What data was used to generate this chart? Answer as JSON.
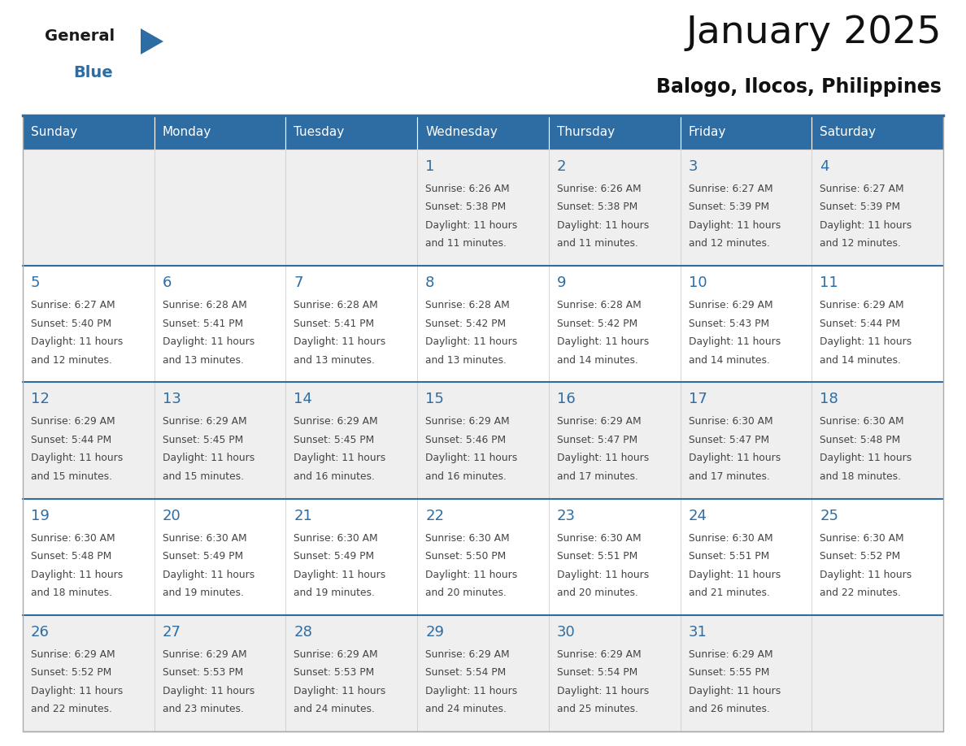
{
  "title": "January 2025",
  "subtitle": "Balogo, Ilocos, Philippines",
  "days_of_week": [
    "Sunday",
    "Monday",
    "Tuesday",
    "Wednesday",
    "Thursday",
    "Friday",
    "Saturday"
  ],
  "header_bg": "#2E6DA4",
  "header_text": "#FFFFFF",
  "cell_bg_row0": "#EFEFEF",
  "cell_bg_row1": "#FFFFFF",
  "cell_bg_row2": "#EFEFEF",
  "cell_bg_row3": "#FFFFFF",
  "cell_bg_row4": "#EFEFEF",
  "cell_border": "#CCCCCC",
  "row_border": "#2E6DA4",
  "day_number_color": "#2E6DA4",
  "text_color": "#444444",
  "calendar": [
    [
      null,
      null,
      null,
      {
        "day": 1,
        "sunrise": "6:26 AM",
        "sunset": "5:38 PM",
        "daylight_line1": "Daylight: 11 hours",
        "daylight_line2": "and 11 minutes."
      },
      {
        "day": 2,
        "sunrise": "6:26 AM",
        "sunset": "5:38 PM",
        "daylight_line1": "Daylight: 11 hours",
        "daylight_line2": "and 11 minutes."
      },
      {
        "day": 3,
        "sunrise": "6:27 AM",
        "sunset": "5:39 PM",
        "daylight_line1": "Daylight: 11 hours",
        "daylight_line2": "and 12 minutes."
      },
      {
        "day": 4,
        "sunrise": "6:27 AM",
        "sunset": "5:39 PM",
        "daylight_line1": "Daylight: 11 hours",
        "daylight_line2": "and 12 minutes."
      }
    ],
    [
      {
        "day": 5,
        "sunrise": "6:27 AM",
        "sunset": "5:40 PM",
        "daylight_line1": "Daylight: 11 hours",
        "daylight_line2": "and 12 minutes."
      },
      {
        "day": 6,
        "sunrise": "6:28 AM",
        "sunset": "5:41 PM",
        "daylight_line1": "Daylight: 11 hours",
        "daylight_line2": "and 13 minutes."
      },
      {
        "day": 7,
        "sunrise": "6:28 AM",
        "sunset": "5:41 PM",
        "daylight_line1": "Daylight: 11 hours",
        "daylight_line2": "and 13 minutes."
      },
      {
        "day": 8,
        "sunrise": "6:28 AM",
        "sunset": "5:42 PM",
        "daylight_line1": "Daylight: 11 hours",
        "daylight_line2": "and 13 minutes."
      },
      {
        "day": 9,
        "sunrise": "6:28 AM",
        "sunset": "5:42 PM",
        "daylight_line1": "Daylight: 11 hours",
        "daylight_line2": "and 14 minutes."
      },
      {
        "day": 10,
        "sunrise": "6:29 AM",
        "sunset": "5:43 PM",
        "daylight_line1": "Daylight: 11 hours",
        "daylight_line2": "and 14 minutes."
      },
      {
        "day": 11,
        "sunrise": "6:29 AM",
        "sunset": "5:44 PM",
        "daylight_line1": "Daylight: 11 hours",
        "daylight_line2": "and 14 minutes."
      }
    ],
    [
      {
        "day": 12,
        "sunrise": "6:29 AM",
        "sunset": "5:44 PM",
        "daylight_line1": "Daylight: 11 hours",
        "daylight_line2": "and 15 minutes."
      },
      {
        "day": 13,
        "sunrise": "6:29 AM",
        "sunset": "5:45 PM",
        "daylight_line1": "Daylight: 11 hours",
        "daylight_line2": "and 15 minutes."
      },
      {
        "day": 14,
        "sunrise": "6:29 AM",
        "sunset": "5:45 PM",
        "daylight_line1": "Daylight: 11 hours",
        "daylight_line2": "and 16 minutes."
      },
      {
        "day": 15,
        "sunrise": "6:29 AM",
        "sunset": "5:46 PM",
        "daylight_line1": "Daylight: 11 hours",
        "daylight_line2": "and 16 minutes."
      },
      {
        "day": 16,
        "sunrise": "6:29 AM",
        "sunset": "5:47 PM",
        "daylight_line1": "Daylight: 11 hours",
        "daylight_line2": "and 17 minutes."
      },
      {
        "day": 17,
        "sunrise": "6:30 AM",
        "sunset": "5:47 PM",
        "daylight_line1": "Daylight: 11 hours",
        "daylight_line2": "and 17 minutes."
      },
      {
        "day": 18,
        "sunrise": "6:30 AM",
        "sunset": "5:48 PM",
        "daylight_line1": "Daylight: 11 hours",
        "daylight_line2": "and 18 minutes."
      }
    ],
    [
      {
        "day": 19,
        "sunrise": "6:30 AM",
        "sunset": "5:48 PM",
        "daylight_line1": "Daylight: 11 hours",
        "daylight_line2": "and 18 minutes."
      },
      {
        "day": 20,
        "sunrise": "6:30 AM",
        "sunset": "5:49 PM",
        "daylight_line1": "Daylight: 11 hours",
        "daylight_line2": "and 19 minutes."
      },
      {
        "day": 21,
        "sunrise": "6:30 AM",
        "sunset": "5:49 PM",
        "daylight_line1": "Daylight: 11 hours",
        "daylight_line2": "and 19 minutes."
      },
      {
        "day": 22,
        "sunrise": "6:30 AM",
        "sunset": "5:50 PM",
        "daylight_line1": "Daylight: 11 hours",
        "daylight_line2": "and 20 minutes."
      },
      {
        "day": 23,
        "sunrise": "6:30 AM",
        "sunset": "5:51 PM",
        "daylight_line1": "Daylight: 11 hours",
        "daylight_line2": "and 20 minutes."
      },
      {
        "day": 24,
        "sunrise": "6:30 AM",
        "sunset": "5:51 PM",
        "daylight_line1": "Daylight: 11 hours",
        "daylight_line2": "and 21 minutes."
      },
      {
        "day": 25,
        "sunrise": "6:30 AM",
        "sunset": "5:52 PM",
        "daylight_line1": "Daylight: 11 hours",
        "daylight_line2": "and 22 minutes."
      }
    ],
    [
      {
        "day": 26,
        "sunrise": "6:29 AM",
        "sunset": "5:52 PM",
        "daylight_line1": "Daylight: 11 hours",
        "daylight_line2": "and 22 minutes."
      },
      {
        "day": 27,
        "sunrise": "6:29 AM",
        "sunset": "5:53 PM",
        "daylight_line1": "Daylight: 11 hours",
        "daylight_line2": "and 23 minutes."
      },
      {
        "day": 28,
        "sunrise": "6:29 AM",
        "sunset": "5:53 PM",
        "daylight_line1": "Daylight: 11 hours",
        "daylight_line2": "and 24 minutes."
      },
      {
        "day": 29,
        "sunrise": "6:29 AM",
        "sunset": "5:54 PM",
        "daylight_line1": "Daylight: 11 hours",
        "daylight_line2": "and 24 minutes."
      },
      {
        "day": 30,
        "sunrise": "6:29 AM",
        "sunset": "5:54 PM",
        "daylight_line1": "Daylight: 11 hours",
        "daylight_line2": "and 25 minutes."
      },
      {
        "day": 31,
        "sunrise": "6:29 AM",
        "sunset": "5:55 PM",
        "daylight_line1": "Daylight: 11 hours",
        "daylight_line2": "and 26 minutes."
      },
      null
    ]
  ],
  "logo_general_color": "#1a1a1a",
  "logo_blue_color": "#2E6DA4",
  "logo_triangle_color": "#2E6DA4"
}
